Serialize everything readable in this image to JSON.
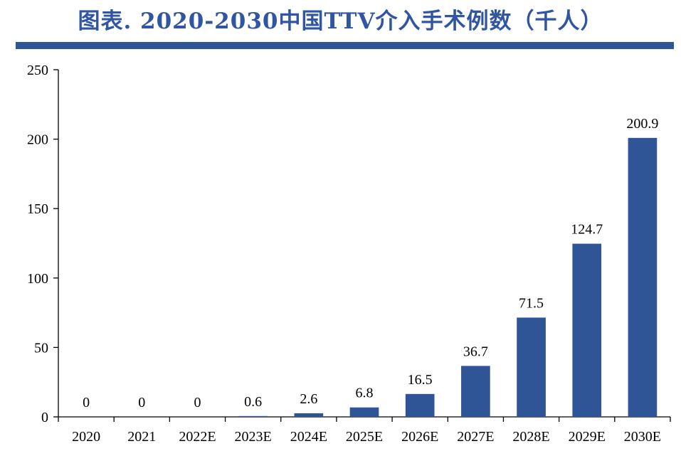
{
  "header": {
    "title": "图表. 2020-2030中国TTV介入手术例数（千人）"
  },
  "colors": {
    "title": "#2f55a4",
    "rule": "#2f5597",
    "bar": "#2f5597",
    "axis": "#000000"
  },
  "chart_data": {
    "type": "bar",
    "title": "图表. 2020-2030中国TTV介入手术例数（千人）",
    "categories": [
      "2020",
      "2021",
      "2022E",
      "2023E",
      "2024E",
      "2025E",
      "2026E",
      "2027E",
      "2028E",
      "2029E",
      "2030E"
    ],
    "values": [
      0,
      0,
      0,
      0.6,
      2.6,
      6.8,
      16.5,
      36.7,
      71.5,
      124.7,
      200.9
    ],
    "data_labels": [
      "0",
      "0",
      "0",
      "0.6",
      "2.6",
      "6.8",
      "16.5",
      "36.7",
      "71.5",
      "124.7",
      "200.9"
    ],
    "xlabel": "",
    "ylabel": "",
    "ylim": [
      0,
      250
    ],
    "yticks": [
      0,
      50,
      100,
      150,
      200,
      250
    ],
    "grid": false,
    "legend": "none"
  }
}
